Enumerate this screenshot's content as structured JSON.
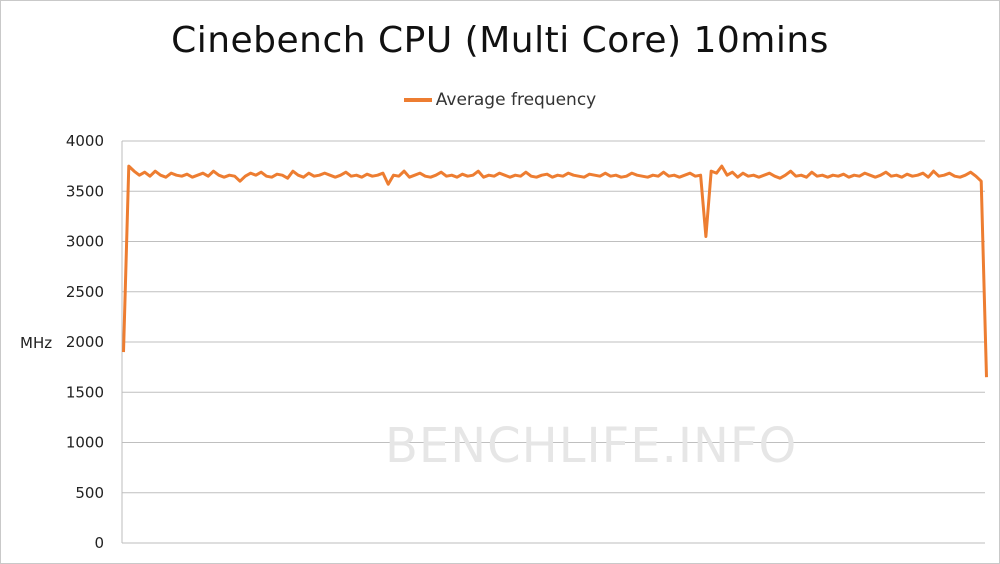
{
  "chart_data": {
    "type": "line",
    "title": "Cinebench CPU (Multi Core) 10mins",
    "ylabel": "MHz",
    "xlabel": "",
    "ylim": [
      0,
      4000
    ],
    "yticks": [
      0,
      500,
      1000,
      1500,
      2000,
      2500,
      3000,
      3500,
      4000
    ],
    "grid": true,
    "legend_position": "top-center",
    "watermark": "BENCHLIFE.INFO",
    "series": [
      {
        "name": "Average frequency",
        "color": "#ed7d31",
        "values": [
          1900,
          3750,
          3700,
          3660,
          3690,
          3650,
          3700,
          3660,
          3640,
          3680,
          3660,
          3650,
          3670,
          3640,
          3660,
          3680,
          3650,
          3700,
          3660,
          3640,
          3660,
          3650,
          3600,
          3650,
          3680,
          3660,
          3690,
          3650,
          3640,
          3670,
          3660,
          3630,
          3700,
          3660,
          3640,
          3680,
          3650,
          3660,
          3680,
          3660,
          3640,
          3660,
          3690,
          3650,
          3660,
          3640,
          3670,
          3650,
          3660,
          3680,
          3570,
          3660,
          3650,
          3700,
          3640,
          3660,
          3680,
          3650,
          3640,
          3660,
          3690,
          3650,
          3660,
          3640,
          3670,
          3650,
          3660,
          3700,
          3640,
          3660,
          3650,
          3680,
          3660,
          3640,
          3660,
          3650,
          3690,
          3650,
          3640,
          3660,
          3670,
          3640,
          3660,
          3650,
          3680,
          3660,
          3650,
          3640,
          3670,
          3660,
          3650,
          3680,
          3650,
          3660,
          3640,
          3650,
          3680,
          3660,
          3650,
          3640,
          3660,
          3650,
          3690,
          3650,
          3660,
          3640,
          3660,
          3680,
          3650,
          3660,
          3050,
          3700,
          3680,
          3750,
          3660,
          3690,
          3640,
          3680,
          3650,
          3660,
          3640,
          3660,
          3680,
          3650,
          3630,
          3660,
          3700,
          3650,
          3660,
          3640,
          3690,
          3650,
          3660,
          3640,
          3660,
          3650,
          3670,
          3640,
          3660,
          3650,
          3680,
          3660,
          3640,
          3660,
          3690,
          3650,
          3660,
          3640,
          3670,
          3650,
          3660,
          3680,
          3640,
          3700,
          3650,
          3660,
          3680,
          3650,
          3640,
          3660,
          3690,
          3650,
          3600,
          1650
        ]
      }
    ]
  }
}
